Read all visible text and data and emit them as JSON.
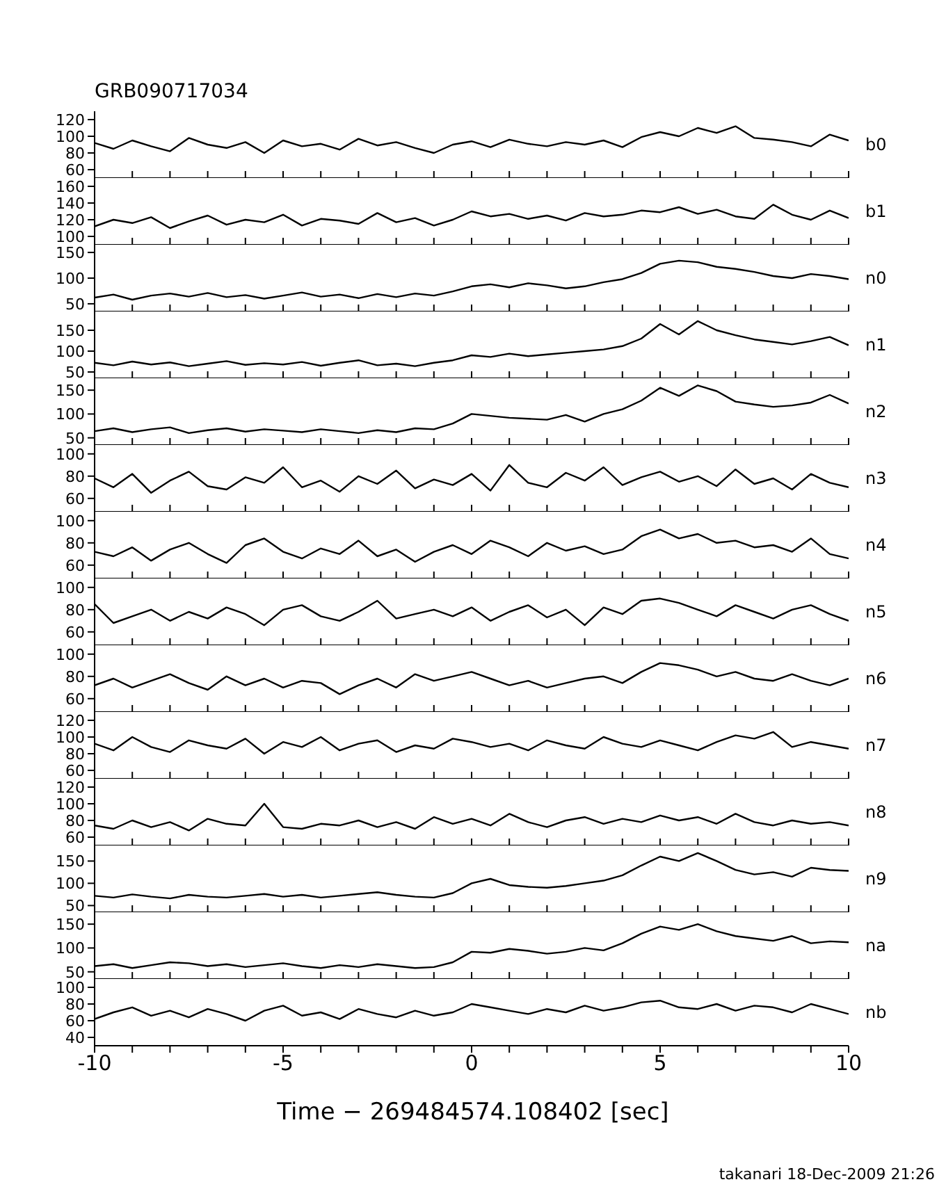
{
  "chart_data": [
    {
      "type": "line",
      "title": "GRB090717034",
      "tick_labels": "y",
      "xlim": [
        -10,
        10
      ],
      "ylim": [
        50,
        130
      ],
      "yticks": [
        60,
        80,
        100,
        120
      ],
      "xticks": [
        -10,
        {
          "value": -9,
          "label": null
        },
        {
          "value": -8,
          "label": null
        },
        {
          "value": -7,
          "label": null
        },
        {
          "value": -6,
          "label": null
        },
        -5,
        {
          "value": -4,
          "label": null
        },
        {
          "value": -3,
          "label": null
        },
        {
          "value": -2,
          "label": null
        },
        {
          "value": -1,
          "label": null
        },
        0,
        {
          "value": 1,
          "label": null
        },
        {
          "value": 2,
          "label": null
        },
        {
          "value": 3,
          "label": null
        },
        {
          "value": 4,
          "label": null
        },
        5,
        {
          "value": 6,
          "label": null
        },
        {
          "value": 7,
          "label": null
        },
        {
          "value": 8,
          "label": null
        },
        {
          "value": 9,
          "label": null
        },
        10
      ],
      "x": [
        -10,
        -9.5,
        -9,
        -8.5,
        -8,
        -7.5,
        -7,
        -6.5,
        -6,
        -5.5,
        -5,
        -4.5,
        -4,
        -3.5,
        -3,
        -2.5,
        -2,
        -1.5,
        -1,
        -0.5,
        0,
        0.5,
        1,
        1.5,
        2,
        2.5,
        3,
        3.5,
        4,
        4.5,
        5,
        5.5,
        6,
        6.5,
        7,
        7.5,
        8,
        8.5,
        9,
        9.5,
        10
      ],
      "series": [
        {
          "name": "b0",
          "color": "#000000",
          "values": [
            92,
            85,
            95,
            88,
            82,
            98,
            90,
            86,
            93,
            80,
            95,
            88,
            91,
            84,
            97,
            89,
            93,
            86,
            80,
            90,
            94,
            87,
            96,
            91,
            88,
            93,
            90,
            95,
            87,
            99,
            105,
            100,
            110,
            104,
            112,
            98,
            96,
            93,
            88,
            102,
            95
          ]
        }
      ]
    },
    {
      "type": "line",
      "tick_labels": "y",
      "xlim": [
        -10,
        10
      ],
      "ylim": [
        90,
        170
      ],
      "yticks": [
        100,
        120,
        140,
        160
      ],
      "xticks": [
        -10,
        {
          "value": -9,
          "label": null
        },
        {
          "value": -8,
          "label": null
        },
        {
          "value": -7,
          "label": null
        },
        {
          "value": -6,
          "label": null
        },
        -5,
        {
          "value": -4,
          "label": null
        },
        {
          "value": -3,
          "label": null
        },
        {
          "value": -2,
          "label": null
        },
        {
          "value": -1,
          "label": null
        },
        0,
        {
          "value": 1,
          "label": null
        },
        {
          "value": 2,
          "label": null
        },
        {
          "value": 3,
          "label": null
        },
        {
          "value": 4,
          "label": null
        },
        5,
        {
          "value": 6,
          "label": null
        },
        {
          "value": 7,
          "label": null
        },
        {
          "value": 8,
          "label": null
        },
        {
          "value": 9,
          "label": null
        },
        10
      ],
      "x": [
        -10,
        -9.5,
        -9,
        -8.5,
        -8,
        -7.5,
        -7,
        -6.5,
        -6,
        -5.5,
        -5,
        -4.5,
        -4,
        -3.5,
        -3,
        -2.5,
        -2,
        -1.5,
        -1,
        -0.5,
        0,
        0.5,
        1,
        1.5,
        2,
        2.5,
        3,
        3.5,
        4,
        4.5,
        5,
        5.5,
        6,
        6.5,
        7,
        7.5,
        8,
        8.5,
        9,
        9.5,
        10
      ],
      "series": [
        {
          "name": "b1",
          "color": "#000000",
          "values": [
            112,
            120,
            116,
            123,
            110,
            118,
            125,
            114,
            120,
            117,
            126,
            113,
            121,
            119,
            115,
            128,
            117,
            122,
            113,
            120,
            130,
            124,
            127,
            121,
            125,
            119,
            128,
            124,
            126,
            131,
            129,
            135,
            127,
            132,
            124,
            121,
            138,
            126,
            120,
            131,
            122
          ]
        }
      ]
    },
    {
      "type": "line",
      "tick_labels": "y",
      "xlim": [
        -10,
        10
      ],
      "ylim": [
        35,
        165
      ],
      "yticks": [
        50,
        100,
        150
      ],
      "xticks": [
        -10,
        {
          "value": -9,
          "label": null
        },
        {
          "value": -8,
          "label": null
        },
        {
          "value": -7,
          "label": null
        },
        {
          "value": -6,
          "label": null
        },
        -5,
        {
          "value": -4,
          "label": null
        },
        {
          "value": -3,
          "label": null
        },
        {
          "value": -2,
          "label": null
        },
        {
          "value": -1,
          "label": null
        },
        0,
        {
          "value": 1,
          "label": null
        },
        {
          "value": 2,
          "label": null
        },
        {
          "value": 3,
          "label": null
        },
        {
          "value": 4,
          "label": null
        },
        5,
        {
          "value": 6,
          "label": null
        },
        {
          "value": 7,
          "label": null
        },
        {
          "value": 8,
          "label": null
        },
        {
          "value": 9,
          "label": null
        },
        10
      ],
      "x": [
        -10,
        -9.5,
        -9,
        -8.5,
        -8,
        -7.5,
        -7,
        -6.5,
        -6,
        -5.5,
        -5,
        -4.5,
        -4,
        -3.5,
        -3,
        -2.5,
        -2,
        -1.5,
        -1,
        -0.5,
        0,
        0.5,
        1,
        1.5,
        2,
        2.5,
        3,
        3.5,
        4,
        4.5,
        5,
        5.5,
        6,
        6.5,
        7,
        7.5,
        8,
        8.5,
        9,
        9.5,
        10
      ],
      "series": [
        {
          "name": "n0",
          "color": "#000000",
          "values": [
            62,
            68,
            58,
            66,
            70,
            64,
            71,
            63,
            67,
            60,
            66,
            72,
            64,
            68,
            61,
            69,
            63,
            70,
            66,
            74,
            84,
            88,
            82,
            90,
            86,
            80,
            84,
            92,
            98,
            110,
            128,
            134,
            131,
            122,
            118,
            112,
            104,
            100,
            108,
            104,
            98
          ]
        }
      ]
    },
    {
      "type": "line",
      "tick_labels": "y",
      "xlim": [
        -10,
        10
      ],
      "ylim": [
        35,
        195
      ],
      "yticks": [
        50,
        100,
        150
      ],
      "xticks": [
        -10,
        {
          "value": -9,
          "label": null
        },
        {
          "value": -8,
          "label": null
        },
        {
          "value": -7,
          "label": null
        },
        {
          "value": -6,
          "label": null
        },
        -5,
        {
          "value": -4,
          "label": null
        },
        {
          "value": -3,
          "label": null
        },
        {
          "value": -2,
          "label": null
        },
        {
          "value": -1,
          "label": null
        },
        0,
        {
          "value": 1,
          "label": null
        },
        {
          "value": 2,
          "label": null
        },
        {
          "value": 3,
          "label": null
        },
        {
          "value": 4,
          "label": null
        },
        5,
        {
          "value": 6,
          "label": null
        },
        {
          "value": 7,
          "label": null
        },
        {
          "value": 8,
          "label": null
        },
        {
          "value": 9,
          "label": null
        },
        10
      ],
      "x": [
        -10,
        -9.5,
        -9,
        -8.5,
        -8,
        -7.5,
        -7,
        -6.5,
        -6,
        -5.5,
        -5,
        -4.5,
        -4,
        -3.5,
        -3,
        -2.5,
        -2,
        -1.5,
        -1,
        -0.5,
        0,
        0.5,
        1,
        1.5,
        2,
        2.5,
        3,
        3.5,
        4,
        4.5,
        5,
        5.5,
        6,
        6.5,
        7,
        7.5,
        8,
        8.5,
        9,
        9.5,
        10
      ],
      "series": [
        {
          "name": "n1",
          "color": "#000000",
          "values": [
            72,
            66,
            75,
            68,
            73,
            64,
            70,
            76,
            67,
            71,
            68,
            74,
            65,
            72,
            78,
            66,
            70,
            64,
            72,
            78,
            90,
            86,
            94,
            88,
            92,
            96,
            100,
            104,
            112,
            130,
            165,
            140,
            172,
            150,
            138,
            128,
            122,
            116,
            124,
            134,
            114
          ]
        }
      ]
    },
    {
      "type": "line",
      "tick_labels": "y",
      "xlim": [
        -10,
        10
      ],
      "ylim": [
        35,
        175
      ],
      "yticks": [
        50,
        100,
        150
      ],
      "xticks": [
        -10,
        {
          "value": -9,
          "label": null
        },
        {
          "value": -8,
          "label": null
        },
        {
          "value": -7,
          "label": null
        },
        {
          "value": -6,
          "label": null
        },
        -5,
        {
          "value": -4,
          "label": null
        },
        {
          "value": -3,
          "label": null
        },
        {
          "value": -2,
          "label": null
        },
        {
          "value": -1,
          "label": null
        },
        0,
        {
          "value": 1,
          "label": null
        },
        {
          "value": 2,
          "label": null
        },
        {
          "value": 3,
          "label": null
        },
        {
          "value": 4,
          "label": null
        },
        5,
        {
          "value": 6,
          "label": null
        },
        {
          "value": 7,
          "label": null
        },
        {
          "value": 8,
          "label": null
        },
        {
          "value": 9,
          "label": null
        },
        10
      ],
      "x": [
        -10,
        -9.5,
        -9,
        -8.5,
        -8,
        -7.5,
        -7,
        -6.5,
        -6,
        -5.5,
        -5,
        -4.5,
        -4,
        -3.5,
        -3,
        -2.5,
        -2,
        -1.5,
        -1,
        -0.5,
        0,
        0.5,
        1,
        1.5,
        2,
        2.5,
        3,
        3.5,
        4,
        4.5,
        5,
        5.5,
        6,
        6.5,
        7,
        7.5,
        8,
        8.5,
        9,
        9.5,
        10
      ],
      "series": [
        {
          "name": "n2",
          "color": "#000000",
          "values": [
            64,
            70,
            62,
            68,
            72,
            60,
            66,
            70,
            63,
            68,
            65,
            62,
            68,
            64,
            60,
            66,
            62,
            70,
            68,
            80,
            100,
            96,
            92,
            90,
            88,
            98,
            84,
            100,
            110,
            128,
            155,
            138,
            160,
            148,
            126,
            120,
            115,
            118,
            124,
            140,
            122
          ]
        }
      ]
    },
    {
      "type": "line",
      "tick_labels": "y",
      "xlim": [
        -10,
        10
      ],
      "ylim": [
        48,
        108
      ],
      "yticks": [
        60,
        80,
        100
      ],
      "xticks": [
        -10,
        {
          "value": -9,
          "label": null
        },
        {
          "value": -8,
          "label": null
        },
        {
          "value": -7,
          "label": null
        },
        {
          "value": -6,
          "label": null
        },
        -5,
        {
          "value": -4,
          "label": null
        },
        {
          "value": -3,
          "label": null
        },
        {
          "value": -2,
          "label": null
        },
        {
          "value": -1,
          "label": null
        },
        0,
        {
          "value": 1,
          "label": null
        },
        {
          "value": 2,
          "label": null
        },
        {
          "value": 3,
          "label": null
        },
        {
          "value": 4,
          "label": null
        },
        5,
        {
          "value": 6,
          "label": null
        },
        {
          "value": 7,
          "label": null
        },
        {
          "value": 8,
          "label": null
        },
        {
          "value": 9,
          "label": null
        },
        10
      ],
      "x": [
        -10,
        -9.5,
        -9,
        -8.5,
        -8,
        -7.5,
        -7,
        -6.5,
        -6,
        -5.5,
        -5,
        -4.5,
        -4,
        -3.5,
        -3,
        -2.5,
        -2,
        -1.5,
        -1,
        -0.5,
        0,
        0.5,
        1,
        1.5,
        2,
        2.5,
        3,
        3.5,
        4,
        4.5,
        5,
        5.5,
        6,
        6.5,
        7,
        7.5,
        8,
        8.5,
        9,
        9.5,
        10
      ],
      "series": [
        {
          "name": "n3",
          "color": "#000000",
          "values": [
            78,
            70,
            82,
            65,
            76,
            84,
            71,
            68,
            79,
            74,
            88,
            70,
            76,
            66,
            80,
            73,
            85,
            69,
            77,
            72,
            82,
            67,
            90,
            74,
            70,
            83,
            76,
            88,
            72,
            79,
            84,
            75,
            80,
            71,
            86,
            73,
            78,
            68,
            82,
            74,
            70
          ]
        }
      ]
    },
    {
      "type": "line",
      "tick_labels": "y",
      "xlim": [
        -10,
        10
      ],
      "ylim": [
        48,
        108
      ],
      "yticks": [
        60,
        80,
        100
      ],
      "xticks": [
        -10,
        {
          "value": -9,
          "label": null
        },
        {
          "value": -8,
          "label": null
        },
        {
          "value": -7,
          "label": null
        },
        {
          "value": -6,
          "label": null
        },
        -5,
        {
          "value": -4,
          "label": null
        },
        {
          "value": -3,
          "label": null
        },
        {
          "value": -2,
          "label": null
        },
        {
          "value": -1,
          "label": null
        },
        0,
        {
          "value": 1,
          "label": null
        },
        {
          "value": 2,
          "label": null
        },
        {
          "value": 3,
          "label": null
        },
        {
          "value": 4,
          "label": null
        },
        5,
        {
          "value": 6,
          "label": null
        },
        {
          "value": 7,
          "label": null
        },
        {
          "value": 8,
          "label": null
        },
        {
          "value": 9,
          "label": null
        },
        10
      ],
      "x": [
        -10,
        -9.5,
        -9,
        -8.5,
        -8,
        -7.5,
        -7,
        -6.5,
        -6,
        -5.5,
        -5,
        -4.5,
        -4,
        -3.5,
        -3,
        -2.5,
        -2,
        -1.5,
        -1,
        -0.5,
        0,
        0.5,
        1,
        1.5,
        2,
        2.5,
        3,
        3.5,
        4,
        4.5,
        5,
        5.5,
        6,
        6.5,
        7,
        7.5,
        8,
        8.5,
        9,
        9.5,
        10
      ],
      "series": [
        {
          "name": "n4",
          "color": "#000000",
          "values": [
            72,
            68,
            76,
            64,
            74,
            80,
            70,
            62,
            78,
            84,
            72,
            66,
            75,
            70,
            82,
            68,
            74,
            63,
            72,
            78,
            70,
            82,
            76,
            68,
            80,
            73,
            77,
            70,
            74,
            86,
            92,
            84,
            88,
            80,
            82,
            76,
            78,
            72,
            84,
            70,
            66
          ]
        }
      ]
    },
    {
      "type": "line",
      "tick_labels": "y",
      "xlim": [
        -10,
        10
      ],
      "ylim": [
        48,
        108
      ],
      "yticks": [
        60,
        80,
        100
      ],
      "xticks": [
        -10,
        {
          "value": -9,
          "label": null
        },
        {
          "value": -8,
          "label": null
        },
        {
          "value": -7,
          "label": null
        },
        {
          "value": -6,
          "label": null
        },
        -5,
        {
          "value": -4,
          "label": null
        },
        {
          "value": -3,
          "label": null
        },
        {
          "value": -2,
          "label": null
        },
        {
          "value": -1,
          "label": null
        },
        0,
        {
          "value": 1,
          "label": null
        },
        {
          "value": 2,
          "label": null
        },
        {
          "value": 3,
          "label": null
        },
        {
          "value": 4,
          "label": null
        },
        5,
        {
          "value": 6,
          "label": null
        },
        {
          "value": 7,
          "label": null
        },
        {
          "value": 8,
          "label": null
        },
        {
          "value": 9,
          "label": null
        },
        10
      ],
      "x": [
        -10,
        -9.5,
        -9,
        -8.5,
        -8,
        -7.5,
        -7,
        -6.5,
        -6,
        -5.5,
        -5,
        -4.5,
        -4,
        -3.5,
        -3,
        -2.5,
        -2,
        -1.5,
        -1,
        -0.5,
        0,
        0.5,
        1,
        1.5,
        2,
        2.5,
        3,
        3.5,
        4,
        4.5,
        5,
        5.5,
        6,
        6.5,
        7,
        7.5,
        8,
        8.5,
        9,
        9.5,
        10
      ],
      "series": [
        {
          "name": "n5",
          "color": "#000000",
          "values": [
            85,
            68,
            74,
            80,
            70,
            78,
            72,
            82,
            76,
            66,
            80,
            84,
            74,
            70,
            78,
            88,
            72,
            76,
            80,
            74,
            82,
            70,
            78,
            84,
            73,
            80,
            66,
            82,
            76,
            88,
            90,
            86,
            80,
            74,
            84,
            78,
            72,
            80,
            84,
            76,
            70
          ]
        }
      ]
    },
    {
      "type": "line",
      "tick_labels": "y",
      "xlim": [
        -10,
        10
      ],
      "ylim": [
        48,
        108
      ],
      "yticks": [
        60,
        80,
        100
      ],
      "xticks": [
        -10,
        {
          "value": -9,
          "label": null
        },
        {
          "value": -8,
          "label": null
        },
        {
          "value": -7,
          "label": null
        },
        {
          "value": -6,
          "label": null
        },
        -5,
        {
          "value": -4,
          "label": null
        },
        {
          "value": -3,
          "label": null
        },
        {
          "value": -2,
          "label": null
        },
        {
          "value": -1,
          "label": null
        },
        0,
        {
          "value": 1,
          "label": null
        },
        {
          "value": 2,
          "label": null
        },
        {
          "value": 3,
          "label": null
        },
        {
          "value": 4,
          "label": null
        },
        5,
        {
          "value": 6,
          "label": null
        },
        {
          "value": 7,
          "label": null
        },
        {
          "value": 8,
          "label": null
        },
        {
          "value": 9,
          "label": null
        },
        10
      ],
      "x": [
        -10,
        -9.5,
        -9,
        -8.5,
        -8,
        -7.5,
        -7,
        -6.5,
        -6,
        -5.5,
        -5,
        -4.5,
        -4,
        -3.5,
        -3,
        -2.5,
        -2,
        -1.5,
        -1,
        -0.5,
        0,
        0.5,
        1,
        1.5,
        2,
        2.5,
        3,
        3.5,
        4,
        4.5,
        5,
        5.5,
        6,
        6.5,
        7,
        7.5,
        8,
        8.5,
        9,
        9.5,
        10
      ],
      "series": [
        {
          "name": "n6",
          "color": "#000000",
          "values": [
            72,
            78,
            70,
            76,
            82,
            74,
            68,
            80,
            72,
            78,
            70,
            76,
            74,
            64,
            72,
            78,
            70,
            82,
            76,
            80,
            84,
            78,
            72,
            76,
            70,
            74,
            78,
            80,
            74,
            84,
            92,
            90,
            86,
            80,
            84,
            78,
            76,
            82,
            76,
            72,
            78
          ]
        }
      ]
    },
    {
      "type": "line",
      "tick_labels": "y",
      "xlim": [
        -10,
        10
      ],
      "ylim": [
        50,
        130
      ],
      "yticks": [
        60,
        80,
        100,
        120
      ],
      "xticks": [
        -10,
        {
          "value": -9,
          "label": null
        },
        {
          "value": -8,
          "label": null
        },
        {
          "value": -7,
          "label": null
        },
        {
          "value": -6,
          "label": null
        },
        -5,
        {
          "value": -4,
          "label": null
        },
        {
          "value": -3,
          "label": null
        },
        {
          "value": -2,
          "label": null
        },
        {
          "value": -1,
          "label": null
        },
        0,
        {
          "value": 1,
          "label": null
        },
        {
          "value": 2,
          "label": null
        },
        {
          "value": 3,
          "label": null
        },
        {
          "value": 4,
          "label": null
        },
        5,
        {
          "value": 6,
          "label": null
        },
        {
          "value": 7,
          "label": null
        },
        {
          "value": 8,
          "label": null
        },
        {
          "value": 9,
          "label": null
        },
        10
      ],
      "x": [
        -10,
        -9.5,
        -9,
        -8.5,
        -8,
        -7.5,
        -7,
        -6.5,
        -6,
        -5.5,
        -5,
        -4.5,
        -4,
        -3.5,
        -3,
        -2.5,
        -2,
        -1.5,
        -1,
        -0.5,
        0,
        0.5,
        1,
        1.5,
        2,
        2.5,
        3,
        3.5,
        4,
        4.5,
        5,
        5.5,
        6,
        6.5,
        7,
        7.5,
        8,
        8.5,
        9,
        9.5,
        10
      ],
      "series": [
        {
          "name": "n7",
          "color": "#000000",
          "values": [
            92,
            84,
            100,
            88,
            82,
            96,
            90,
            86,
            98,
            80,
            94,
            88,
            100,
            84,
            92,
            96,
            82,
            90,
            86,
            98,
            94,
            88,
            92,
            84,
            96,
            90,
            86,
            100,
            92,
            88,
            96,
            90,
            84,
            94,
            102,
            98,
            106,
            88,
            94,
            90,
            86
          ]
        }
      ]
    },
    {
      "type": "line",
      "tick_labels": "y",
      "xlim": [
        -10,
        10
      ],
      "ylim": [
        50,
        130
      ],
      "yticks": [
        60,
        80,
        100,
        120
      ],
      "xticks": [
        -10,
        {
          "value": -9,
          "label": null
        },
        {
          "value": -8,
          "label": null
        },
        {
          "value": -7,
          "label": null
        },
        {
          "value": -6,
          "label": null
        },
        -5,
        {
          "value": -4,
          "label": null
        },
        {
          "value": -3,
          "label": null
        },
        {
          "value": -2,
          "label": null
        },
        {
          "value": -1,
          "label": null
        },
        0,
        {
          "value": 1,
          "label": null
        },
        {
          "value": 2,
          "label": null
        },
        {
          "value": 3,
          "label": null
        },
        {
          "value": 4,
          "label": null
        },
        5,
        {
          "value": 6,
          "label": null
        },
        {
          "value": 7,
          "label": null
        },
        {
          "value": 8,
          "label": null
        },
        {
          "value": 9,
          "label": null
        },
        10
      ],
      "x": [
        -10,
        -9.5,
        -9,
        -8.5,
        -8,
        -7.5,
        -7,
        -6.5,
        -6,
        -5.5,
        -5,
        -4.5,
        -4,
        -3.5,
        -3,
        -2.5,
        -2,
        -1.5,
        -1,
        -0.5,
        0,
        0.5,
        1,
        1.5,
        2,
        2.5,
        3,
        3.5,
        4,
        4.5,
        5,
        5.5,
        6,
        6.5,
        7,
        7.5,
        8,
        8.5,
        9,
        9.5,
        10
      ],
      "series": [
        {
          "name": "n8",
          "color": "#000000",
          "values": [
            74,
            70,
            80,
            72,
            78,
            68,
            82,
            76,
            74,
            100,
            72,
            70,
            76,
            74,
            80,
            72,
            78,
            70,
            84,
            76,
            82,
            74,
            88,
            78,
            72,
            80,
            84,
            76,
            82,
            78,
            86,
            80,
            84,
            76,
            88,
            78,
            74,
            80,
            76,
            78,
            74
          ]
        }
      ]
    },
    {
      "type": "line",
      "tick_labels": "y",
      "xlim": [
        -10,
        10
      ],
      "ylim": [
        35,
        185
      ],
      "yticks": [
        50,
        100,
        150
      ],
      "xticks": [
        -10,
        {
          "value": -9,
          "label": null
        },
        {
          "value": -8,
          "label": null
        },
        {
          "value": -7,
          "label": null
        },
        {
          "value": -6,
          "label": null
        },
        -5,
        {
          "value": -4,
          "label": null
        },
        {
          "value": -3,
          "label": null
        },
        {
          "value": -2,
          "label": null
        },
        {
          "value": -1,
          "label": null
        },
        0,
        {
          "value": 1,
          "label": null
        },
        {
          "value": 2,
          "label": null
        },
        {
          "value": 3,
          "label": null
        },
        {
          "value": 4,
          "label": null
        },
        5,
        {
          "value": 6,
          "label": null
        },
        {
          "value": 7,
          "label": null
        },
        {
          "value": 8,
          "label": null
        },
        {
          "value": 9,
          "label": null
        },
        10
      ],
      "x": [
        -10,
        -9.5,
        -9,
        -8.5,
        -8,
        -7.5,
        -7,
        -6.5,
        -6,
        -5.5,
        -5,
        -4.5,
        -4,
        -3.5,
        -3,
        -2.5,
        -2,
        -1.5,
        -1,
        -0.5,
        0,
        0.5,
        1,
        1.5,
        2,
        2.5,
        3,
        3.5,
        4,
        4.5,
        5,
        5.5,
        6,
        6.5,
        7,
        7.5,
        8,
        8.5,
        9,
        9.5,
        10
      ],
      "series": [
        {
          "name": "n9",
          "color": "#000000",
          "values": [
            72,
            68,
            75,
            70,
            66,
            74,
            70,
            68,
            72,
            76,
            70,
            74,
            68,
            72,
            76,
            80,
            74,
            70,
            68,
            78,
            100,
            110,
            96,
            92,
            90,
            94,
            100,
            106,
            118,
            140,
            160,
            150,
            168,
            150,
            130,
            120,
            125,
            115,
            135,
            130,
            128
          ]
        }
      ]
    },
    {
      "type": "line",
      "tick_labels": "y",
      "xlim": [
        -10,
        10
      ],
      "ylim": [
        35,
        175
      ],
      "yticks": [
        50,
        100,
        150
      ],
      "xticks": [
        -10,
        {
          "value": -9,
          "label": null
        },
        {
          "value": -8,
          "label": null
        },
        {
          "value": -7,
          "label": null
        },
        {
          "value": -6,
          "label": null
        },
        -5,
        {
          "value": -4,
          "label": null
        },
        {
          "value": -3,
          "label": null
        },
        {
          "value": -2,
          "label": null
        },
        {
          "value": -1,
          "label": null
        },
        0,
        {
          "value": 1,
          "label": null
        },
        {
          "value": 2,
          "label": null
        },
        {
          "value": 3,
          "label": null
        },
        {
          "value": 4,
          "label": null
        },
        5,
        {
          "value": 6,
          "label": null
        },
        {
          "value": 7,
          "label": null
        },
        {
          "value": 8,
          "label": null
        },
        {
          "value": 9,
          "label": null
        },
        10
      ],
      "x": [
        -10,
        -9.5,
        -9,
        -8.5,
        -8,
        -7.5,
        -7,
        -6.5,
        -6,
        -5.5,
        -5,
        -4.5,
        -4,
        -3.5,
        -3,
        -2.5,
        -2,
        -1.5,
        -1,
        -0.5,
        0,
        0.5,
        1,
        1.5,
        2,
        2.5,
        3,
        3.5,
        4,
        4.5,
        5,
        5.5,
        6,
        6.5,
        7,
        7.5,
        8,
        8.5,
        9,
        9.5,
        10
      ],
      "series": [
        {
          "name": "na",
          "color": "#000000",
          "values": [
            62,
            66,
            58,
            64,
            70,
            68,
            62,
            66,
            60,
            64,
            68,
            62,
            58,
            64,
            60,
            66,
            62,
            58,
            60,
            70,
            92,
            90,
            98,
            94,
            88,
            92,
            100,
            95,
            110,
            130,
            145,
            138,
            150,
            135,
            125,
            120,
            115,
            125,
            110,
            114,
            112
          ]
        }
      ]
    },
    {
      "type": "line",
      "xlabel": "Time − 269484574.108402 [sec]",
      "annotations": [
        "takanari 18-Dec-2009 21:26"
      ],
      "xlim": [
        -10,
        10
      ],
      "ylim": [
        30,
        110
      ],
      "yticks": [
        40,
        60,
        80,
        100
      ],
      "xticks": [
        -10,
        {
          "value": -9,
          "label": null
        },
        {
          "value": -8,
          "label": null
        },
        {
          "value": -7,
          "label": null
        },
        {
          "value": -6,
          "label": null
        },
        -5,
        {
          "value": -4,
          "label": null
        },
        {
          "value": -3,
          "label": null
        },
        {
          "value": -2,
          "label": null
        },
        {
          "value": -1,
          "label": null
        },
        0,
        {
          "value": 1,
          "label": null
        },
        {
          "value": 2,
          "label": null
        },
        {
          "value": 3,
          "label": null
        },
        {
          "value": 4,
          "label": null
        },
        5,
        {
          "value": 6,
          "label": null
        },
        {
          "value": 7,
          "label": null
        },
        {
          "value": 8,
          "label": null
        },
        {
          "value": 9,
          "label": null
        },
        10
      ],
      "x": [
        -10,
        -9.5,
        -9,
        -8.5,
        -8,
        -7.5,
        -7,
        -6.5,
        -6,
        -5.5,
        -5,
        -4.5,
        -4,
        -3.5,
        -3,
        -2.5,
        -2,
        -1.5,
        -1,
        -0.5,
        0,
        0.5,
        1,
        1.5,
        2,
        2.5,
        3,
        3.5,
        4,
        4.5,
        5,
        5.5,
        6,
        6.5,
        7,
        7.5,
        8,
        8.5,
        9,
        9.5,
        10
      ],
      "series": [
        {
          "name": "nb",
          "color": "#000000",
          "values": [
            62,
            70,
            76,
            66,
            72,
            64,
            74,
            68,
            60,
            72,
            78,
            66,
            70,
            62,
            74,
            68,
            64,
            72,
            66,
            70,
            80,
            76,
            72,
            68,
            74,
            70,
            78,
            72,
            76,
            82,
            84,
            76,
            74,
            80,
            72,
            78,
            76,
            70,
            80,
            74,
            68
          ]
        }
      ]
    }
  ]
}
